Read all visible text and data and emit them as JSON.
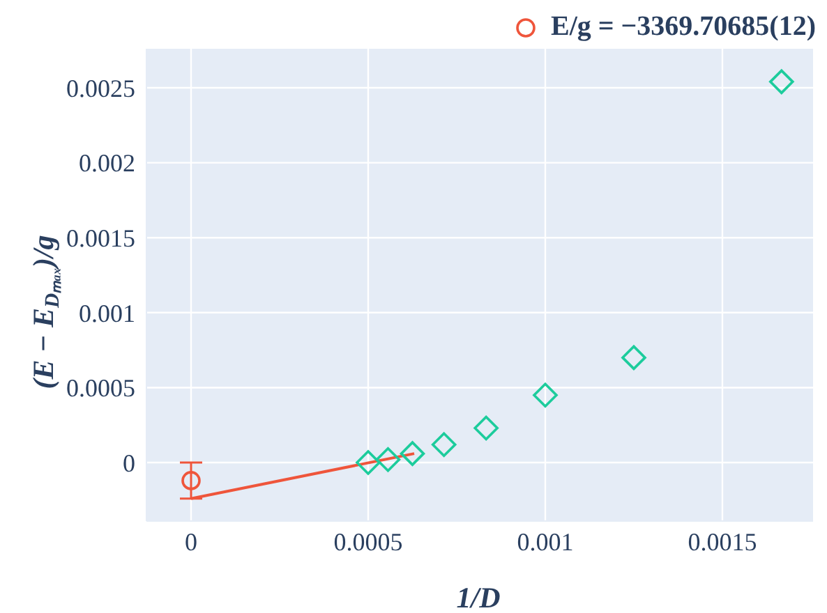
{
  "chart_data": {
    "type": "scatter",
    "xlabel": "1/D",
    "ylabel": "(E − E$_{Dₘₐₓ}$)/g",
    "xlim": [
      -0.000126,
      0.001756
    ],
    "xticks": [
      0,
      0.0005,
      0.001,
      0.0015
    ],
    "ylim": [
      -0.00039,
      0.00276
    ],
    "yticks": [
      0,
      0.0005,
      0.001,
      0.0015,
      0.002,
      0.0025
    ],
    "grid": true,
    "legend": "top right",
    "series": [
      {
        "marker": "diamond",
        "color": "#1ccc9c",
        "x": [
          0.0005,
          0.000556,
          0.000625,
          0.000714,
          0.000833,
          0.001,
          0.00125,
          0.001667
        ],
        "values": [
          0,
          2e-05,
          6e-05,
          0.00012,
          0.00023,
          0.00045,
          0.0007,
          0.00254
        ]
      },
      {
        "type": "line",
        "marker": "none",
        "color": "#ef553b",
        "x": [
          0,
          0.00063
        ],
        "values": [
          -0.00024,
          6e-05
        ]
      },
      {
        "marker": "circle",
        "name": "E/g = −3369.70685(12)",
        "color": "#ef553b",
        "x": [
          0
        ],
        "values": [
          -0.00012
        ],
        "errors": [
          0.00012
        ]
      }
    ]
  }
}
